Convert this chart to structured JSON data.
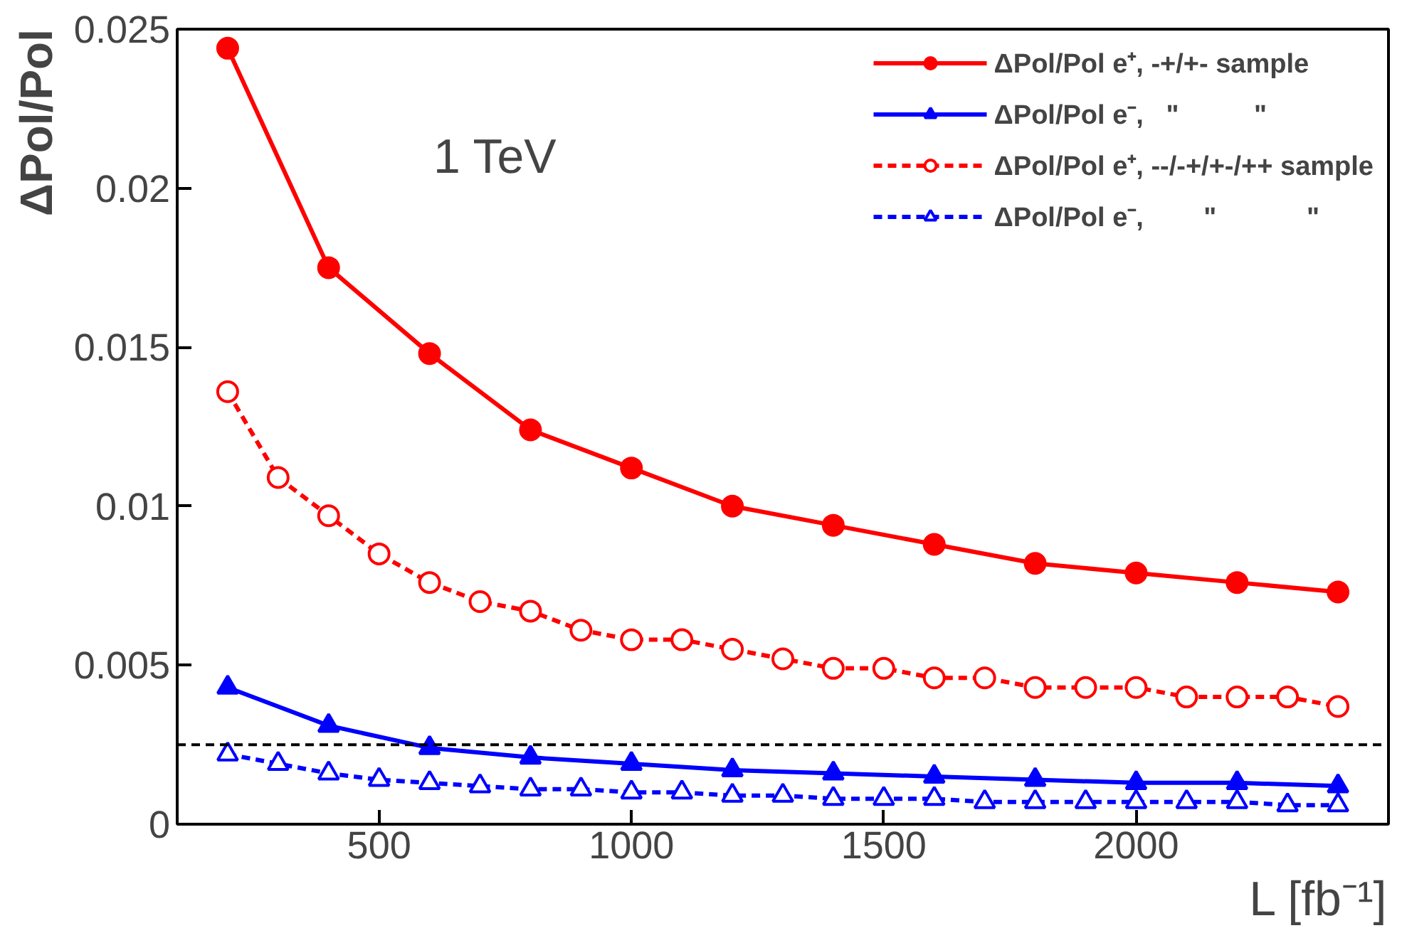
{
  "chart_data": {
    "type": "line",
    "xlabel": "L [fb⁻¹]",
    "ylabel": "ΔPol/Pol",
    "annotations": [
      "1 TeV"
    ],
    "xlim": [
      100,
      2500
    ],
    "ylim": [
      0,
      0.025
    ],
    "xticks": [
      500,
      1000,
      1500,
      2000
    ],
    "yticks": [
      0,
      0.005,
      0.01,
      0.015,
      0.02,
      0.025
    ],
    "grid": false,
    "legend": "top right",
    "series": [
      {
        "name": "ΔPol/Pol e⁺, -+/+- sample",
        "color": "#ff0000",
        "marker": "circle",
        "line_style": "solid",
        "x": [
          200,
          400,
          600,
          800,
          1000,
          1200,
          1400,
          1600,
          1800,
          2000,
          2200,
          2400
        ],
        "values": [
          0.0244,
          0.0175,
          0.0148,
          0.0124,
          0.0112,
          0.01,
          0.0094,
          0.0088,
          0.0082,
          0.0079,
          0.0076,
          0.0073
        ]
      },
      {
        "name": "ΔPol/Pol e⁻,   \"          \"",
        "color": "#0000ff",
        "marker": "triangle",
        "line_style": "solid",
        "x": [
          200,
          400,
          600,
          800,
          1000,
          1200,
          1400,
          1600,
          1800,
          2000,
          2200,
          2400
        ],
        "values": [
          0.0043,
          0.0031,
          0.0024,
          0.0021,
          0.0019,
          0.0017,
          0.0016,
          0.0015,
          0.0014,
          0.0013,
          0.0013,
          0.0012
        ]
      },
      {
        "name": "ΔPol/Pol e⁺, --/-+/+-/++ sample",
        "color": "#ff0000",
        "marker": "circle",
        "line_style": "dashed",
        "x": [
          200,
          300,
          400,
          500,
          600,
          700,
          800,
          900,
          1000,
          1100,
          1200,
          1300,
          1400,
          1500,
          1600,
          1700,
          1800,
          1900,
          2000,
          2100,
          2200,
          2300,
          2400
        ],
        "values": [
          0.0136,
          0.0109,
          0.0097,
          0.0085,
          0.0076,
          0.007,
          0.0067,
          0.0061,
          0.0058,
          0.0058,
          0.0055,
          0.0052,
          0.0049,
          0.0049,
          0.0046,
          0.0046,
          0.0043,
          0.0043,
          0.0043,
          0.004,
          0.004,
          0.004,
          0.0037
        ]
      },
      {
        "name": "ΔPol/Pol e⁻,        \"            \"",
        "color": "#0000ff",
        "marker": "triangle",
        "line_style": "dashed",
        "x": [
          200,
          300,
          400,
          500,
          600,
          700,
          800,
          900,
          1000,
          1100,
          1200,
          1300,
          1400,
          1500,
          1600,
          1700,
          1800,
          1900,
          2000,
          2100,
          2200,
          2300,
          2400
        ],
        "values": [
          0.0022,
          0.0019,
          0.0016,
          0.0014,
          0.0013,
          0.0012,
          0.0011,
          0.0011,
          0.001,
          0.001,
          0.0009,
          0.0009,
          0.0008,
          0.0008,
          0.0008,
          0.0007,
          0.0007,
          0.0007,
          0.0007,
          0.0007,
          0.0007,
          0.0006,
          0.0006
        ]
      }
    ],
    "ref_lines": [
      {
        "axis": "y",
        "value": 0.0025,
        "color": "#000000",
        "line_style": "dashed"
      }
    ]
  }
}
